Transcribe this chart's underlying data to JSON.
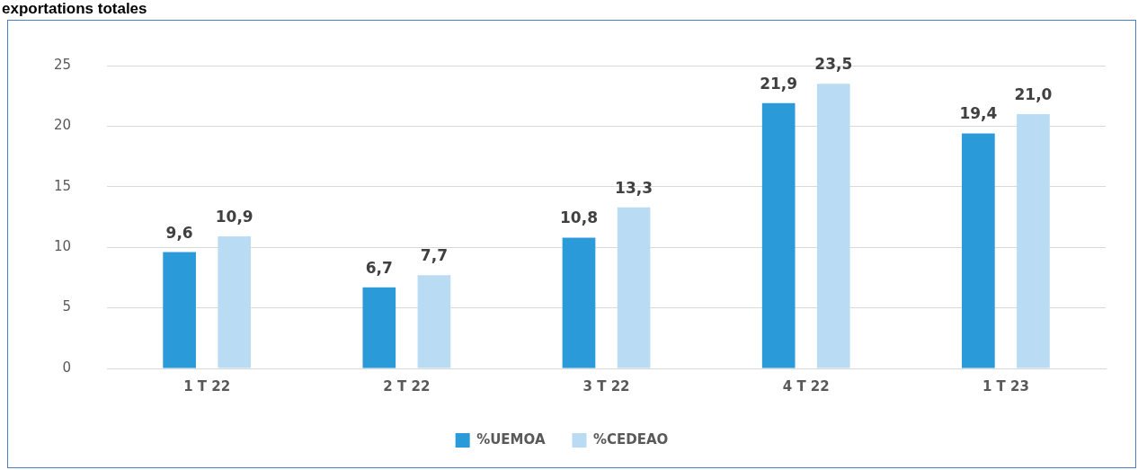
{
  "chart_data": {
    "type": "bar",
    "title": "exportations totales",
    "categories": [
      "1 T 22",
      "2 T 22",
      "3 T 22",
      "4 T 22",
      "1 T 23"
    ],
    "series": [
      {
        "name": "%UEMOA",
        "color": "#2b9ad8",
        "values": [
          9.6,
          6.7,
          10.8,
          21.9,
          19.4
        ],
        "value_labels": [
          "9,6",
          "6,7",
          "10,8",
          "21,9",
          "19,4"
        ]
      },
      {
        "name": "%CEDEAO",
        "color": "#b9dcf4",
        "values": [
          10.9,
          7.7,
          13.3,
          23.5,
          21.0
        ],
        "value_labels": [
          "10,9",
          "7,7",
          "13,3",
          "23,5",
          "21,0"
        ]
      }
    ],
    "ylim": [
      0,
      25
    ],
    "yticks": [
      0,
      5,
      10,
      15,
      20,
      25
    ],
    "grid": "y",
    "legend": "bottom"
  }
}
